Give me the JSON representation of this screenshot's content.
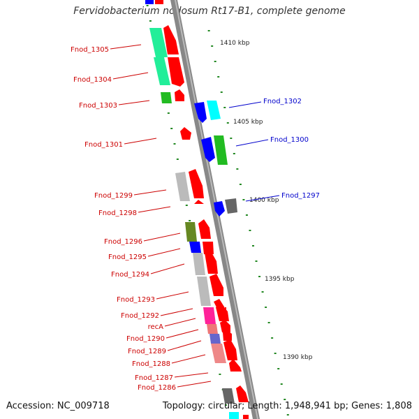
{
  "title": "Fervidobacterium nodosum Rt17-B1, complete genome",
  "footer": {
    "accession": "Accession: NC_009718",
    "summary": "Topology: circular; Length: 1,948,941 bp; Genes: 1,808"
  },
  "scale_labels": [
    "1410 kbp",
    "1405 kbp",
    "1400 kbp",
    "1395 kbp",
    "1390 kbp"
  ],
  "left_labels": [
    "Fnod_1305",
    "Fnod_1304",
    "Fnod_1303",
    "Fnod_1301",
    "Fnod_1299",
    "Fnod_1298",
    "Fnod_1296",
    "Fnod_1295",
    "Fnod_1294",
    "Fnod_1293",
    "Fnod_1292",
    "recA",
    "Fnod_1290",
    "Fnod_1289",
    "Fnod_1288",
    "Fnod_1287",
    "Fnod_1286"
  ],
  "right_labels": [
    "Fnod_1302",
    "Fnod_1300",
    "Fnod_1297"
  ],
  "colors": {
    "forward_label": "#cc0000",
    "reverse_label": "#0000cc",
    "axis": "#888888",
    "tick": "#228822",
    "gene_red": "#ff0000",
    "gene_blue": "#0000ff",
    "gene_cyan": "#00ffff",
    "gene_green": "#22bb22",
    "gene_mint": "#22ee99",
    "gene_grey": "#bbbbbb",
    "gene_darkgrey": "#666666",
    "gene_olive": "#668822",
    "gene_magenta": "#ff2299",
    "gene_salmon": "#ee7777",
    "gene_violet": "#6666cc",
    "gene_pink": "#ee8888"
  }
}
